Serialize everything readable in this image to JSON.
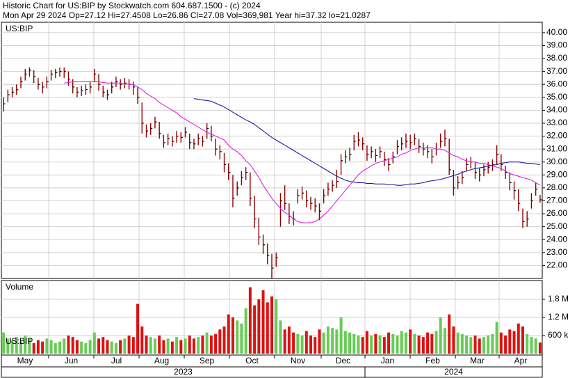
{
  "header": {
    "line1": "Historic Chart for US:BIP by Stockwatch.com 604.687.1500 - (c) 2024",
    "line2": "Mon Apr 29 2024  Op=27.12  Hi=27.4508  Lo=26.86  Cl=27.08  Vol=369,981  Year hi=37.32  lo=21.0287"
  },
  "time_axis": {
    "months": [
      "May",
      "Jun",
      "Jul",
      "Aug",
      "Sep",
      "Oct",
      "Nov",
      "Dec",
      "Jan",
      "Feb",
      "Mar",
      "Apr"
    ],
    "years": [
      "2023",
      "2024"
    ]
  },
  "chart_data": [
    {
      "type": "ohlc",
      "label": "US:BIP",
      "color": "#8b0000",
      "grid": true,
      "ylim": [
        21,
        40.8
      ],
      "yticks": [
        {
          "value": 22,
          "label": "22.00"
        },
        {
          "value": 23,
          "label": "23.00"
        },
        {
          "value": 24,
          "label": "24.00"
        },
        {
          "value": 25,
          "label": "25.00"
        },
        {
          "value": 26,
          "label": "26.00"
        },
        {
          "value": 27,
          "label": "27.00"
        },
        {
          "value": 28,
          "label": "28.00"
        },
        {
          "value": 29,
          "label": "29.00"
        },
        {
          "value": 30,
          "label": "30.00"
        },
        {
          "value": 31,
          "label": "31.00"
        },
        {
          "value": 32,
          "label": "32.00"
        },
        {
          "value": 33,
          "label": "33.00"
        },
        {
          "value": 34,
          "label": "34.00"
        },
        {
          "value": 35,
          "label": "35.00"
        },
        {
          "value": 36,
          "label": "36.00"
        },
        {
          "value": 37,
          "label": "37.00"
        },
        {
          "value": 38,
          "label": "38.00"
        },
        {
          "value": 39,
          "label": "39.00"
        },
        {
          "value": 40,
          "label": "40.00"
        }
      ],
      "high": [
        35.0,
        35.6,
        35.8,
        36.0,
        36.6,
        37.2,
        37.32,
        37.1,
        36.5,
        36.2,
        36.6,
        37.1,
        37.2,
        37.3,
        37.3,
        37.0,
        36.4,
        35.8,
        35.9,
        36.0,
        36.2,
        37.2,
        36.8,
        35.9,
        35.6,
        36.2,
        36.6,
        36.4,
        36.5,
        36.4,
        36.2,
        35.8,
        34.6,
        32.9,
        33.0,
        33.5,
        33.1,
        32.1,
        32.2,
        32.0,
        32.4,
        32.3,
        32.7,
        32.2,
        31.8,
        32.2,
        32.0,
        33.0,
        32.8,
        31.8,
        31.3,
        30.7,
        29.9,
        29.0,
        28.5,
        29.3,
        29.6,
        29.2,
        27.4,
        25.7,
        24.4,
        23.7,
        22.9,
        23.0,
        27.6,
        28.2,
        26.8,
        26.2,
        27.9,
        28.1,
        27.8,
        27.3,
        27.2,
        26.8,
        27.9,
        28.4,
        28.6,
        29.4,
        30.6,
        30.9,
        31.1,
        32.1,
        32.3,
        31.9,
        31.3,
        31.2,
        31.0,
        31.2,
        30.8,
        30.3,
        30.8,
        31.7,
        31.9,
        32.2,
        32.1,
        32.2,
        31.8,
        31.5,
        31.3,
        31.0,
        31.5,
        32.2,
        32.5,
        31.8,
        29.4,
        28.9,
        29.3,
        30.3,
        30.4,
        30.0,
        29.5,
        29.8,
        30.0,
        30.2,
        31.3,
        30.6,
        29.7,
        29.2,
        28.5,
        27.9,
        26.4,
        26.2,
        27.6,
        28.4,
        27.4508
      ],
      "low": [
        33.9,
        34.6,
        35.0,
        35.2,
        35.7,
        36.3,
        36.6,
        36.1,
        35.6,
        35.3,
        35.7,
        36.3,
        36.5,
        36.6,
        36.5,
        35.9,
        35.3,
        35.0,
        35.1,
        35.2,
        35.3,
        36.2,
        35.5,
        35.0,
        34.8,
        35.3,
        35.8,
        35.6,
        35.7,
        35.6,
        35.2,
        34.5,
        32.2,
        31.9,
        32.1,
        32.6,
        31.8,
        31.1,
        31.3,
        31.2,
        31.5,
        31.5,
        31.9,
        31.0,
        31.0,
        31.3,
        31.2,
        31.8,
        31.6,
        30.5,
        30.2,
        29.2,
        28.6,
        26.5,
        27.4,
        28.2,
        28.6,
        26.6,
        24.9,
        23.6,
        22.9,
        22.1,
        21.0287,
        21.9,
        25.0,
        26.3,
        25.2,
        25.1,
        26.8,
        27.1,
        26.5,
        26.3,
        26.1,
        25.5,
        26.8,
        27.4,
        27.7,
        28.0,
        29.0,
        29.9,
        30.1,
        30.9,
        31.2,
        30.9,
        30.1,
        30.3,
        30.0,
        30.3,
        29.7,
        29.3,
        29.9,
        30.6,
        30.9,
        31.1,
        31.0,
        31.3,
        30.7,
        30.5,
        30.3,
        29.9,
        30.5,
        31.1,
        31.2,
        29.0,
        27.4,
        27.9,
        28.3,
        29.3,
        29.5,
        28.7,
        28.5,
        28.9,
        29.1,
        29.3,
        29.8,
        29.3,
        28.7,
        27.8,
        27.1,
        26.2,
        24.9,
        25.0,
        26.4,
        27.4,
        26.86
      ],
      "close": [
        34.5,
        35.2,
        35.4,
        35.6,
        36.2,
        36.8,
        37.1,
        36.6,
        36.0,
        35.8,
        36.2,
        36.8,
        36.9,
        37.0,
        37.0,
        36.4,
        35.8,
        35.4,
        35.5,
        35.6,
        35.8,
        36.8,
        36.0,
        35.4,
        35.2,
        35.8,
        36.2,
        36.0,
        36.1,
        36.0,
        35.8,
        35.0,
        33.0,
        32.4,
        32.6,
        33.1,
        32.2,
        31.5,
        31.8,
        31.6,
        32.0,
        31.9,
        32.3,
        31.5,
        31.4,
        31.8,
        31.6,
        32.6,
        32.0,
        31.0,
        30.8,
        29.8,
        29.2,
        27.2,
        28.0,
        28.8,
        29.2,
        27.2,
        25.6,
        24.2,
        23.6,
        22.8,
        21.8,
        22.6,
        27.0,
        26.8,
        25.8,
        25.6,
        27.4,
        27.6,
        27.0,
        26.8,
        26.6,
        26.2,
        27.4,
        27.9,
        28.2,
        28.5,
        30.1,
        30.4,
        30.6,
        31.6,
        31.7,
        31.4,
        30.6,
        30.8,
        30.5,
        30.8,
        30.2,
        29.8,
        30.4,
        31.2,
        31.4,
        31.6,
        31.5,
        31.8,
        31.2,
        31.0,
        30.8,
        30.4,
        31.0,
        31.6,
        31.8,
        29.4,
        28.0,
        28.4,
        28.8,
        29.8,
        30.0,
        29.2,
        29.0,
        29.4,
        29.6,
        29.8,
        30.6,
        29.8,
        29.2,
        28.4,
        27.8,
        26.8,
        25.4,
        25.6,
        27.0,
        27.9,
        27.08
      ],
      "moving_averages": [
        {
          "color": "#e020e0",
          "values": [
            null,
            null,
            null,
            null,
            null,
            null,
            null,
            null,
            null,
            null,
            null,
            null,
            null,
            null,
            36.1,
            36.15,
            36.2,
            36.2,
            36.2,
            36.2,
            36.2,
            36.2,
            36.2,
            36.15,
            36.1,
            36.1,
            36.1,
            36.1,
            36.05,
            36.0,
            36.0,
            35.8,
            35.6,
            35.3,
            35.1,
            34.9,
            34.6,
            34.4,
            34.2,
            34.0,
            33.8,
            33.5,
            33.3,
            33.1,
            32.9,
            32.7,
            32.5,
            32.3,
            32.15,
            32.0,
            31.85,
            31.7,
            31.3,
            31.0,
            30.8,
            30.5,
            30.1,
            29.8,
            29.3,
            28.8,
            28.2,
            27.7,
            27.2,
            26.8,
            26.4,
            26.1,
            25.9,
            25.6,
            25.4,
            25.3,
            25.3,
            25.3,
            25.4,
            25.6,
            25.9,
            26.2,
            26.6,
            27.0,
            27.4,
            27.8,
            28.2,
            28.6,
            29.0,
            29.3,
            29.5,
            29.7,
            29.9,
            30.0,
            30.1,
            30.2,
            30.3,
            30.4,
            30.6,
            30.7,
            30.9,
            31.0,
            31.1,
            31.1,
            31.1,
            31.1,
            31.0,
            31.0,
            30.9,
            30.7,
            30.5,
            30.4,
            30.2,
            30.1,
            30.0,
            30.0,
            29.9,
            29.9,
            29.8,
            29.7,
            29.6,
            29.5,
            29.3,
            29.1,
            29.0,
            28.9,
            28.8,
            28.7,
            28.6,
            28.4,
            28.2
          ]
        },
        {
          "color": "#1a1a9a",
          "values": [
            null,
            null,
            null,
            null,
            null,
            null,
            null,
            null,
            null,
            null,
            null,
            null,
            null,
            null,
            null,
            null,
            null,
            null,
            null,
            null,
            null,
            null,
            null,
            null,
            null,
            null,
            null,
            null,
            null,
            null,
            null,
            null,
            null,
            null,
            null,
            null,
            null,
            null,
            null,
            null,
            null,
            null,
            null,
            null,
            34.9,
            34.85,
            34.8,
            34.75,
            34.7,
            34.55,
            34.4,
            34.25,
            34.05,
            33.85,
            33.65,
            33.45,
            33.25,
            33.1,
            32.9,
            32.65,
            32.4,
            32.15,
            31.9,
            31.7,
            31.5,
            31.3,
            31.1,
            30.9,
            30.7,
            30.5,
            30.3,
            30.1,
            29.9,
            29.7,
            29.5,
            29.3,
            29.1,
            28.9,
            28.75,
            28.6,
            28.5,
            28.45,
            28.4,
            28.4,
            28.35,
            28.35,
            28.3,
            28.3,
            28.3,
            28.25,
            28.25,
            28.2,
            28.2,
            28.25,
            28.3,
            28.3,
            28.35,
            28.4,
            28.5,
            28.55,
            28.6,
            28.65,
            28.75,
            28.85,
            28.95,
            29.05,
            29.2,
            29.3,
            29.4,
            29.5,
            29.55,
            29.6,
            29.7,
            29.75,
            29.8,
            29.9,
            29.95,
            30.0,
            30.0,
            30.0,
            29.95,
            29.9,
            29.9,
            29.85,
            29.8
          ]
        }
      ]
    },
    {
      "type": "bar",
      "title": "Volume",
      "label": "US:BIP",
      "up_color": "#66cc55",
      "down_color": "#dd1111",
      "grid": true,
      "ylim": [
        0,
        2400000
      ],
      "yticks": [
        {
          "value": 600000,
          "label": "600 k"
        },
        {
          "value": 1200000,
          "label": "1.2 M"
        },
        {
          "value": 1800000,
          "label": "1.8 M"
        }
      ],
      "values": [
        700000,
        500000,
        450000,
        550000,
        400000,
        600000,
        500000,
        350000,
        450000,
        400000,
        500000,
        450000,
        350000,
        400000,
        500000,
        600000,
        550000,
        450000,
        400000,
        350000,
        450000,
        700000,
        500000,
        550000,
        450000,
        400000,
        350000,
        450000,
        500000,
        600000,
        550000,
        1650000,
        900000,
        600000,
        550000,
        500000,
        600000,
        450000,
        500000,
        400000,
        550000,
        450000,
        500000,
        600000,
        500000,
        550000,
        600000,
        700000,
        600000,
        650000,
        800000,
        900000,
        1300000,
        1200000,
        1100000,
        1000000,
        1500000,
        2200000,
        1600000,
        1800000,
        2100000,
        1700000,
        1900000,
        1800000,
        1100000,
        800000,
        900000,
        700000,
        650000,
        600000,
        750000,
        600000,
        550000,
        800000,
        700000,
        900000,
        850000,
        800000,
        1200000,
        750000,
        700000,
        650000,
        600000,
        550000,
        750000,
        600000,
        650000,
        600000,
        550000,
        700000,
        650000,
        600000,
        750000,
        700000,
        800000,
        650000,
        600000,
        550000,
        700000,
        650000,
        750000,
        1200000,
        850000,
        1300000,
        900000,
        700000,
        650000,
        600000,
        550000,
        600000,
        500000,
        550000,
        600000,
        650000,
        1050000,
        700000,
        600000,
        800000,
        750000,
        1000000,
        900000,
        650000,
        550000,
        500000,
        369981
      ]
    }
  ]
}
